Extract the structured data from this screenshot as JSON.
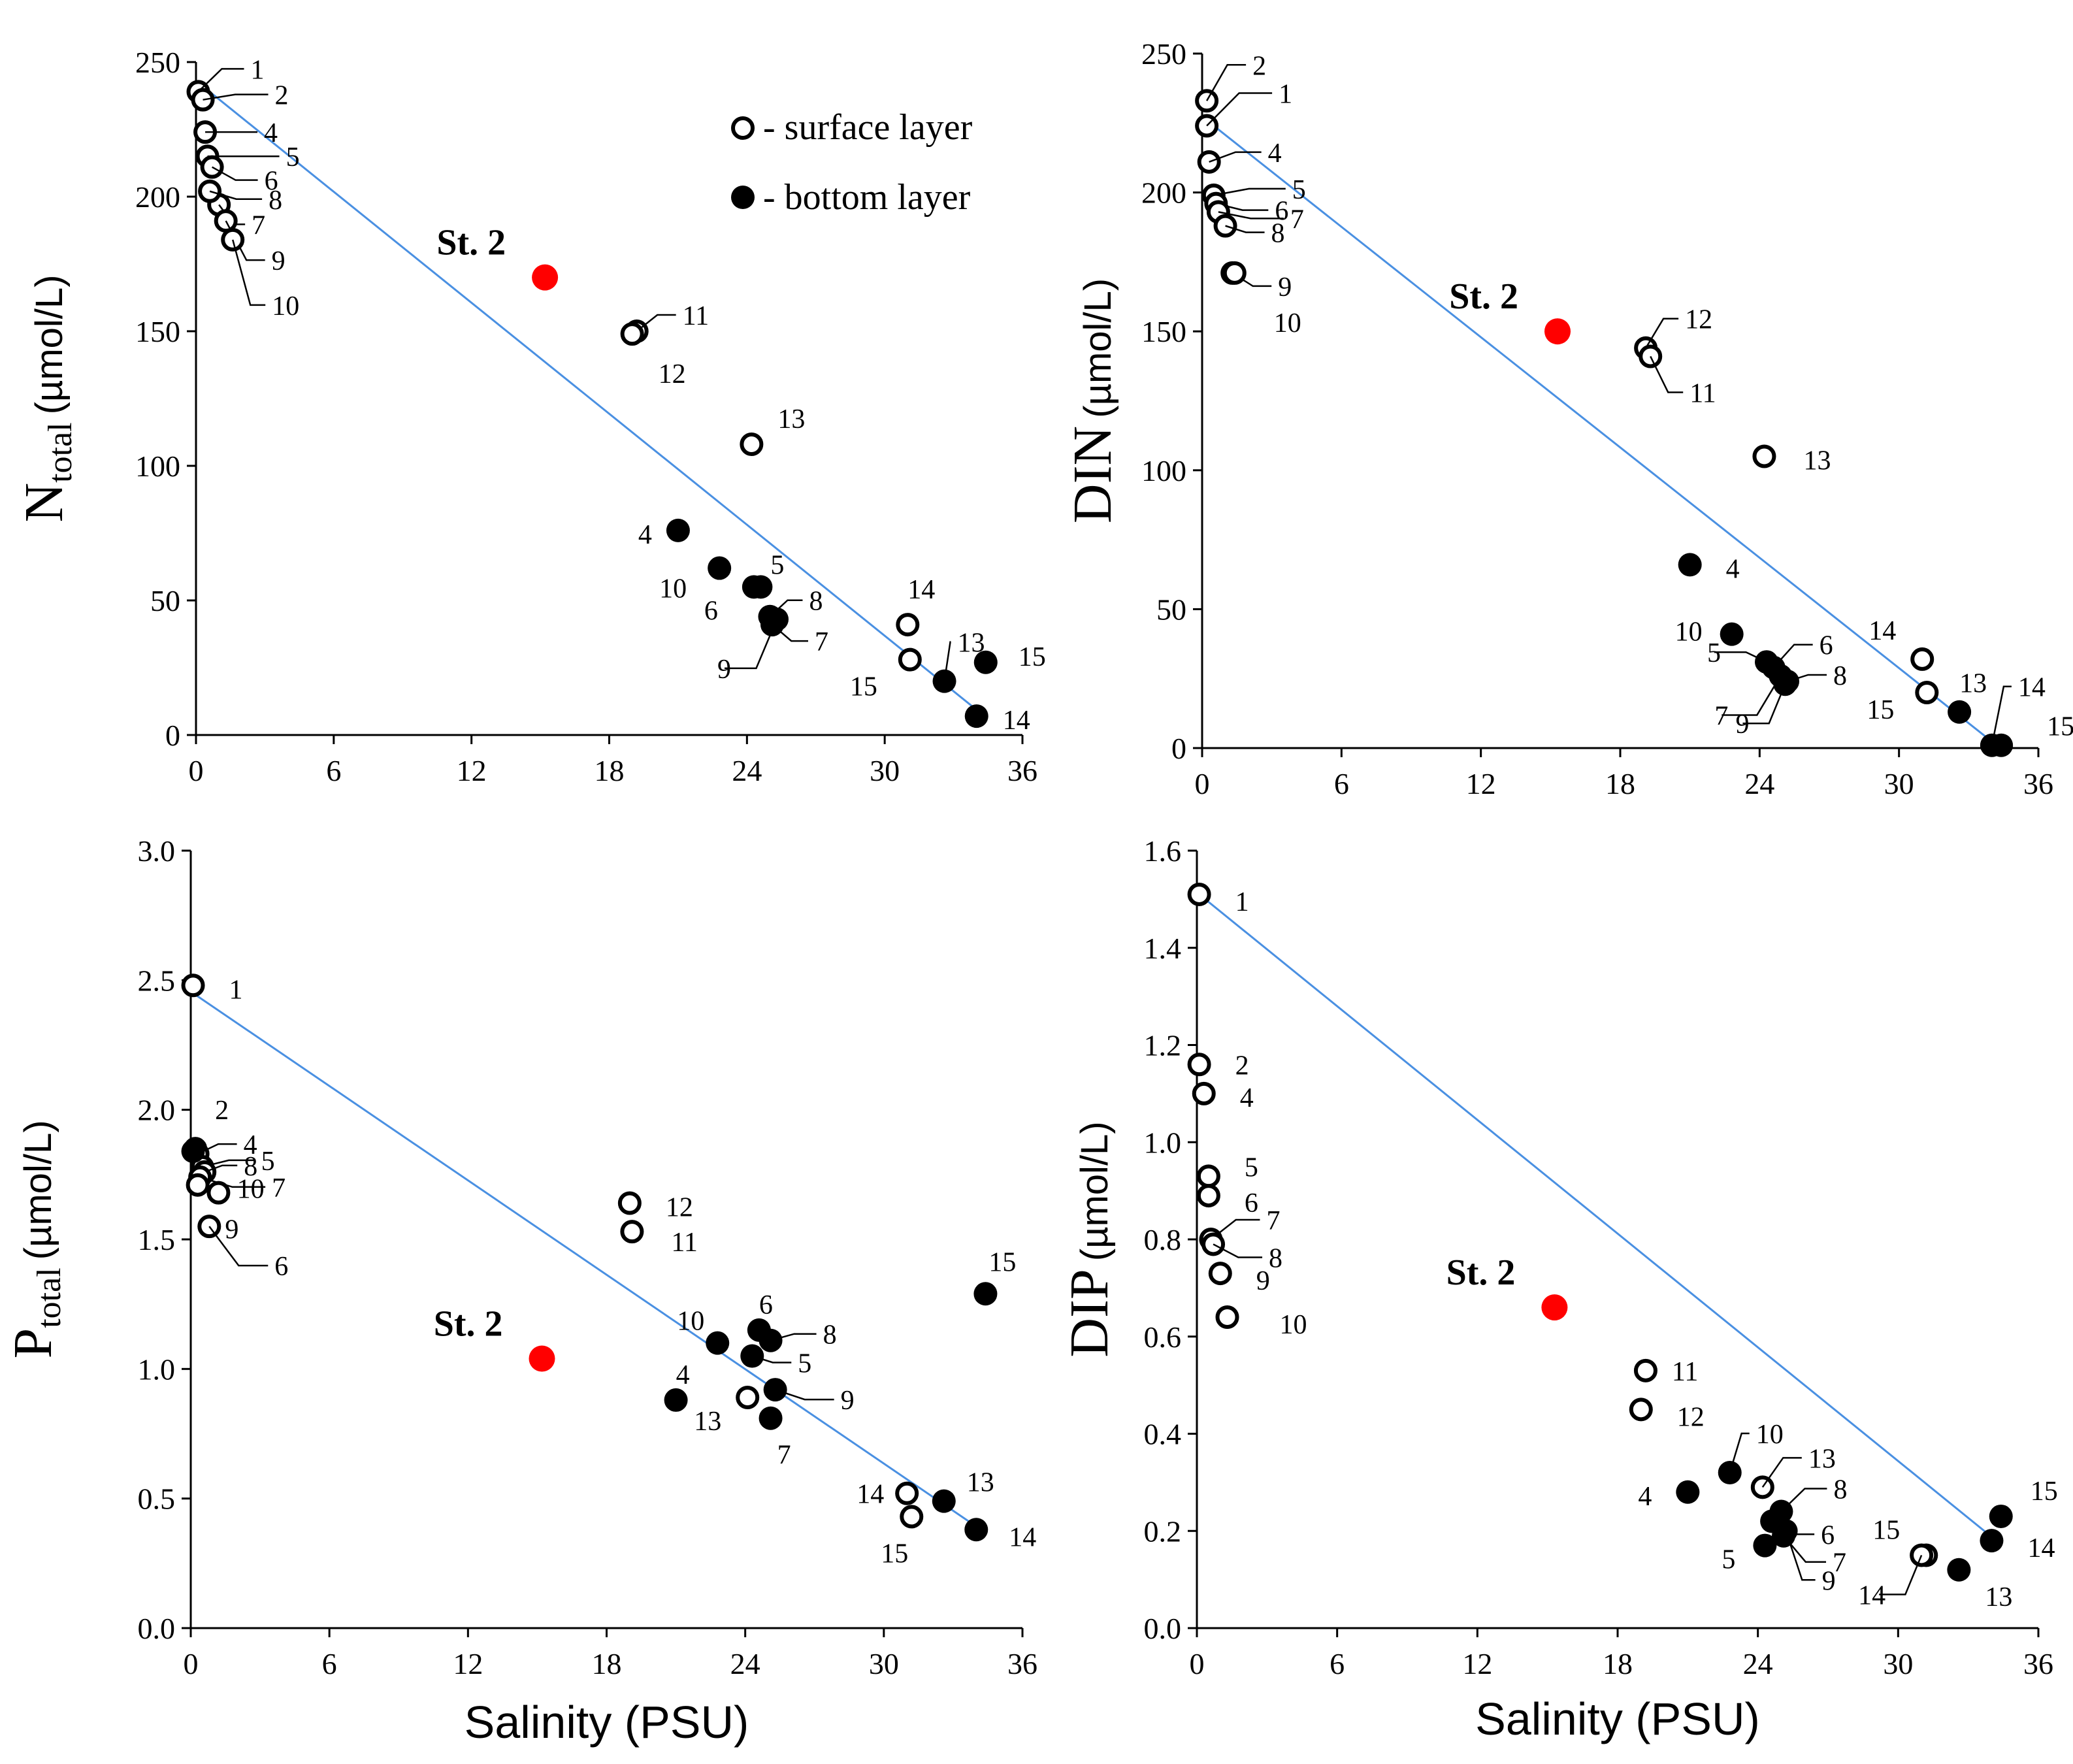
{
  "legend": {
    "surface": "- surface layer",
    "bottom": "- bottom layer"
  },
  "colors": {
    "regression": "#4a90e2",
    "highlight": "#ff0000",
    "marker": "#000000"
  },
  "chart_data": [
    {
      "id": "ntotal",
      "type": "scatter",
      "ylabel": {
        "main": "N",
        "sub": "total",
        "unit": "(µmol/L)"
      },
      "xlabel": "",
      "xlim": [
        0,
        36
      ],
      "xticks": [
        "0",
        "6",
        "12",
        "18",
        "24",
        "30",
        "36"
      ],
      "ylim": [
        0,
        250
      ],
      "yticks": [
        "0",
        "50",
        "100",
        "150",
        "200",
        "250"
      ],
      "st2": {
        "label": "St. 2",
        "x": 15.2,
        "y": 170
      },
      "regression": {
        "x1": 0.3,
        "y1": 241,
        "x2": 34.2,
        "y2": 8
      },
      "surface": [
        {
          "label": "1",
          "x": 0.1,
          "y": 239
        },
        {
          "label": "2",
          "x": 0.3,
          "y": 236
        },
        {
          "label": "4",
          "x": 0.4,
          "y": 224
        },
        {
          "label": "5",
          "x": 0.5,
          "y": 215
        },
        {
          "label": "6",
          "x": 0.7,
          "y": 211
        },
        {
          "label": "7",
          "x": 1.0,
          "y": 197
        },
        {
          "label": "8",
          "x": 0.6,
          "y": 202
        },
        {
          "label": "9",
          "x": 1.3,
          "y": 191
        },
        {
          "label": "10",
          "x": 1.6,
          "y": 184
        },
        {
          "label": "11",
          "x": 19.2,
          "y": 150
        },
        {
          "label": "12",
          "x": 19.0,
          "y": 149
        },
        {
          "label": "13",
          "x": 24.2,
          "y": 108
        },
        {
          "label": "14",
          "x": 31.0,
          "y": 41
        },
        {
          "label": "15",
          "x": 31.1,
          "y": 28
        }
      ],
      "bottom": [
        {
          "label": "4",
          "x": 21.0,
          "y": 76
        },
        {
          "label": "10",
          "x": 22.8,
          "y": 62
        },
        {
          "label": "5",
          "x": 24.6,
          "y": 55
        },
        {
          "label": "6",
          "x": 24.3,
          "y": 55
        },
        {
          "label": "8",
          "x": 25.0,
          "y": 44
        },
        {
          "label": "7",
          "x": 25.1,
          "y": 41
        },
        {
          "label": "9",
          "x": 25.3,
          "y": 43
        },
        {
          "label": "13",
          "x": 32.6,
          "y": 20
        },
        {
          "label": "15",
          "x": 34.4,
          "y": 27
        },
        {
          "label": "14",
          "x": 34.0,
          "y": 7
        }
      ]
    },
    {
      "id": "din",
      "type": "scatter",
      "ylabel": {
        "main": "DIN",
        "sub": "",
        "unit": "(µmol/L)"
      },
      "xlabel": "",
      "xlim": [
        0,
        36
      ],
      "xticks": [
        "0",
        "6",
        "12",
        "18",
        "24",
        "30",
        "36"
      ],
      "ylim": [
        0,
        250
      ],
      "yticks": [
        "0",
        "50",
        "100",
        "150",
        "200",
        "250"
      ],
      "st2": {
        "label": "St. 2",
        "x": 15.3,
        "y": 150
      },
      "regression": {
        "x1": 0.2,
        "y1": 226,
        "x2": 34.2,
        "y2": 1
      },
      "surface": [
        {
          "label": "2",
          "x": 0.2,
          "y": 233
        },
        {
          "label": "1",
          "x": 0.2,
          "y": 224
        },
        {
          "label": "4",
          "x": 0.3,
          "y": 211
        },
        {
          "label": "5",
          "x": 0.5,
          "y": 199
        },
        {
          "label": "6",
          "x": 0.6,
          "y": 196
        },
        {
          "label": "7",
          "x": 0.7,
          "y": 193
        },
        {
          "label": "8",
          "x": 1.0,
          "y": 188
        },
        {
          "label": "9",
          "x": 1.3,
          "y": 171
        },
        {
          "label": "10",
          "x": 1.4,
          "y": 171
        },
        {
          "label": "12",
          "x": 19.1,
          "y": 144
        },
        {
          "label": "11",
          "x": 19.3,
          "y": 141
        },
        {
          "label": "13",
          "x": 24.2,
          "y": 105
        },
        {
          "label": "14",
          "x": 31.0,
          "y": 32
        },
        {
          "label": "15",
          "x": 31.2,
          "y": 20
        }
      ],
      "bottom": [
        {
          "label": "4",
          "x": 21.0,
          "y": 66
        },
        {
          "label": "10",
          "x": 22.8,
          "y": 41
        },
        {
          "label": "5",
          "x": 24.3,
          "y": 31
        },
        {
          "label": "6",
          "x": 24.6,
          "y": 29
        },
        {
          "label": "7",
          "x": 24.9,
          "y": 26
        },
        {
          "label": "8",
          "x": 25.2,
          "y": 24
        },
        {
          "label": "9",
          "x": 25.1,
          "y": 23
        },
        {
          "label": "13",
          "x": 32.6,
          "y": 13
        },
        {
          "label": "14",
          "x": 34.0,
          "y": 1
        },
        {
          "label": "15",
          "x": 34.4,
          "y": 1
        }
      ]
    },
    {
      "id": "ptotal",
      "type": "scatter",
      "ylabel": {
        "main": "P",
        "sub": "total",
        "unit": "(µmol/L)"
      },
      "xlabel": "Salinity (PSU)",
      "xlim": [
        0,
        36
      ],
      "xticks": [
        "0",
        "6",
        "12",
        "18",
        "24",
        "30",
        "36"
      ],
      "ylim": [
        0,
        3.0
      ],
      "yticks": [
        "0.0",
        "0.5",
        "1.0",
        "1.5",
        "2.0",
        "2.5",
        "3.0"
      ],
      "st2": {
        "label": "St. 2",
        "x": 15.2,
        "y": 1.04
      },
      "regression": {
        "x1": 0.1,
        "y1": 2.45,
        "x2": 34.2,
        "y2": 0.38
      },
      "surface": [
        {
          "label": "1",
          "x": 0.1,
          "y": 2.48
        },
        {
          "label": "2",
          "x": 0.2,
          "y": 1.85
        },
        {
          "label": "4",
          "x": 0.3,
          "y": 1.83
        },
        {
          "label": "5",
          "x": 0.5,
          "y": 1.78
        },
        {
          "label": "8",
          "x": 0.6,
          "y": 1.76
        },
        {
          "label": "7",
          "x": 0.4,
          "y": 1.74
        },
        {
          "label": "10",
          "x": 0.3,
          "y": 1.71
        },
        {
          "label": "9",
          "x": 1.2,
          "y": 1.68
        },
        {
          "label": "6",
          "x": 0.8,
          "y": 1.55
        },
        {
          "label": "12",
          "x": 19.0,
          "y": 1.64
        },
        {
          "label": "11",
          "x": 19.1,
          "y": 1.53
        },
        {
          "label": "13",
          "x": 24.1,
          "y": 0.89
        },
        {
          "label": "14",
          "x": 31.0,
          "y": 0.52
        },
        {
          "label": "15",
          "x": 31.2,
          "y": 0.43
        }
      ],
      "bottom": [
        {
          "label": "2",
          "x": 0.1,
          "y": 1.84
        },
        {
          "label": "10",
          "x": 22.8,
          "y": 1.1
        },
        {
          "label": "6",
          "x": 24.6,
          "y": 1.15
        },
        {
          "label": "8",
          "x": 25.1,
          "y": 1.11
        },
        {
          "label": "5",
          "x": 24.3,
          "y": 1.05
        },
        {
          "label": "9",
          "x": 25.3,
          "y": 0.92
        },
        {
          "label": "4",
          "x": 21.0,
          "y": 0.88
        },
        {
          "label": "7",
          "x": 25.1,
          "y": 0.81
        },
        {
          "label": "13",
          "x": 32.6,
          "y": 0.49
        },
        {
          "label": "14",
          "x": 34.0,
          "y": 0.38
        },
        {
          "label": "15",
          "x": 34.4,
          "y": 1.29
        }
      ]
    },
    {
      "id": "dip",
      "type": "scatter",
      "ylabel": {
        "main": "DIP",
        "sub": "",
        "unit": "(µmol/L)"
      },
      "xlabel": "Salinity (PSU)",
      "xlim": [
        0,
        36
      ],
      "xticks": [
        "0",
        "6",
        "12",
        "18",
        "24",
        "30",
        "36"
      ],
      "ylim": [
        0,
        1.6
      ],
      "yticks": [
        "0.0",
        "0.2",
        "0.4",
        "0.6",
        "0.8",
        "1.0",
        "1.2",
        "1.4",
        "1.6"
      ],
      "st2": {
        "label": "St. 2",
        "x": 15.3,
        "y": 0.66
      },
      "regression": {
        "x1": 0.1,
        "y1": 1.51,
        "x2": 34.2,
        "y2": 0.18
      },
      "surface": [
        {
          "label": "1",
          "x": 0.1,
          "y": 1.51
        },
        {
          "label": "2",
          "x": 0.1,
          "y": 1.16
        },
        {
          "label": "4",
          "x": 0.3,
          "y": 1.1
        },
        {
          "label": "5",
          "x": 0.5,
          "y": 0.93
        },
        {
          "label": "6",
          "x": 0.5,
          "y": 0.89
        },
        {
          "label": "7",
          "x": 0.6,
          "y": 0.8
        },
        {
          "label": "8",
          "x": 0.7,
          "y": 0.79
        },
        {
          "label": "9",
          "x": 1.0,
          "y": 0.73
        },
        {
          "label": "10",
          "x": 1.3,
          "y": 0.64
        },
        {
          "label": "11",
          "x": 19.2,
          "y": 0.53
        },
        {
          "label": "12",
          "x": 19.0,
          "y": 0.45
        },
        {
          "label": "13",
          "x": 24.2,
          "y": 0.29
        },
        {
          "label": "15",
          "x": 31.2,
          "y": 0.15
        },
        {
          "label": "14",
          "x": 31.0,
          "y": 0.15
        }
      ],
      "bottom": [
        {
          "label": "4",
          "x": 21.0,
          "y": 0.28
        },
        {
          "label": "10",
          "x": 22.8,
          "y": 0.32
        },
        {
          "label": "8",
          "x": 25.0,
          "y": 0.24
        },
        {
          "label": "6",
          "x": 24.6,
          "y": 0.22
        },
        {
          "label": "7",
          "x": 25.1,
          "y": 0.19
        },
        {
          "label": "5",
          "x": 24.3,
          "y": 0.17
        },
        {
          "label": "9",
          "x": 25.2,
          "y": 0.2
        },
        {
          "label": "13",
          "x": 32.6,
          "y": 0.12
        },
        {
          "label": "15",
          "x": 34.4,
          "y": 0.23
        },
        {
          "label": "14",
          "x": 34.0,
          "y": 0.18
        }
      ]
    }
  ]
}
